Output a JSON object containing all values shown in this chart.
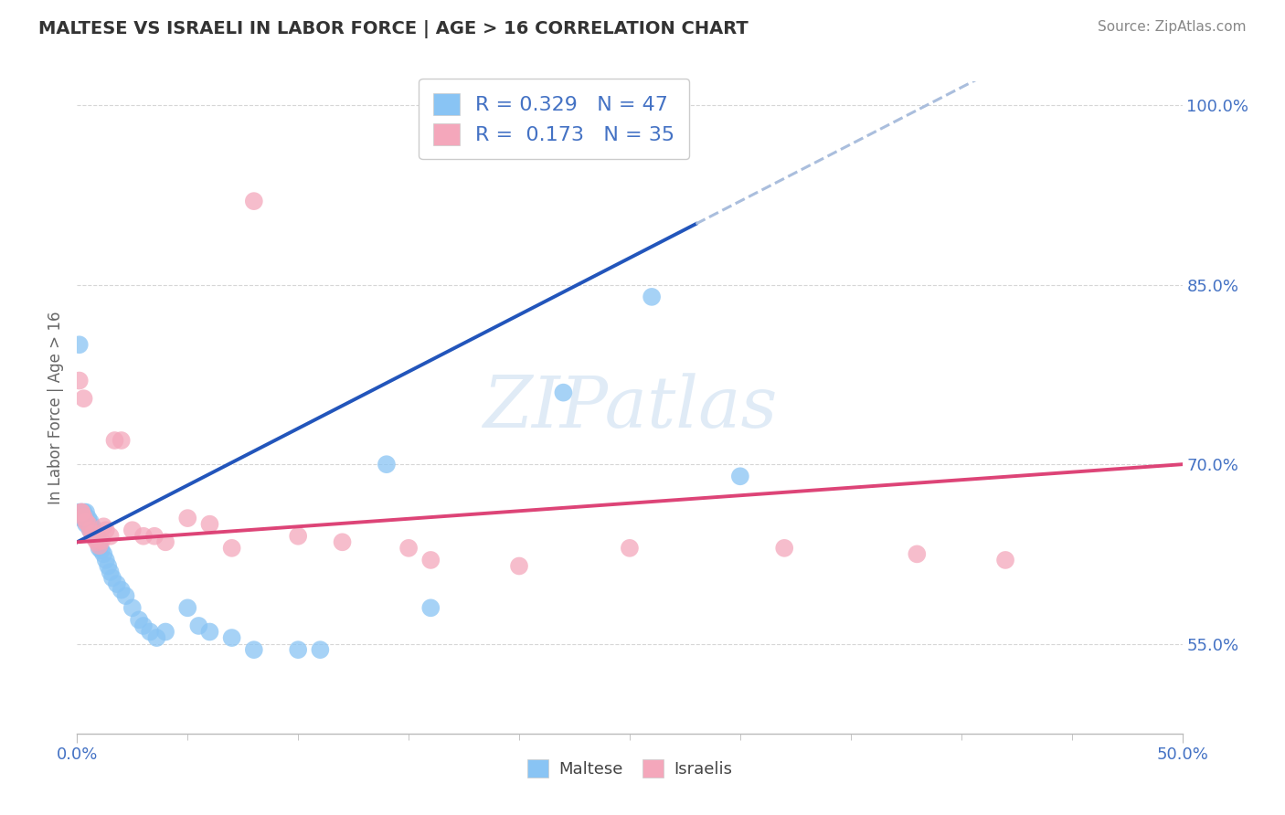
{
  "title": "MALTESE VS ISRAELI IN LABOR FORCE | AGE > 16 CORRELATION CHART",
  "source": "Source: ZipAtlas.com",
  "ylabel": "In Labor Force | Age > 16",
  "xlim": [
    0.0,
    0.5
  ],
  "ylim": [
    0.475,
    1.02
  ],
  "ytick_positions": [
    0.55,
    0.7,
    0.85,
    1.0
  ],
  "yticklabels": [
    "55.0%",
    "70.0%",
    "85.0%",
    "100.0%"
  ],
  "maltese_color": "#89C4F4",
  "israeli_color": "#F4A7BB",
  "trend_maltese_color": "#2255BB",
  "trend_israeli_color": "#DD4477",
  "trend_ext_color": "#AABEDD",
  "R_maltese": 0.329,
  "N_maltese": 47,
  "R_israeli": 0.173,
  "N_israeli": 35,
  "legend_color": "#4472C4",
  "background_color": "#FFFFFF",
  "grid_color": "#CCCCCC",
  "watermark": "ZIPatlas",
  "maltese_x": [
    0.001,
    0.001,
    0.002,
    0.002,
    0.003,
    0.003,
    0.004,
    0.004,
    0.005,
    0.005,
    0.006,
    0.006,
    0.006,
    0.007,
    0.007,
    0.008,
    0.009,
    0.009,
    0.01,
    0.01,
    0.011,
    0.012,
    0.013,
    0.014,
    0.015,
    0.016,
    0.018,
    0.02,
    0.022,
    0.025,
    0.028,
    0.03,
    0.033,
    0.036,
    0.04,
    0.05,
    0.055,
    0.06,
    0.07,
    0.08,
    0.1,
    0.11,
    0.14,
    0.16,
    0.22,
    0.26,
    0.3
  ],
  "maltese_y": [
    0.8,
    0.66,
    0.66,
    0.655,
    0.66,
    0.655,
    0.66,
    0.65,
    0.655,
    0.65,
    0.652,
    0.648,
    0.645,
    0.648,
    0.645,
    0.642,
    0.64,
    0.638,
    0.635,
    0.63,
    0.628,
    0.625,
    0.62,
    0.615,
    0.61,
    0.605,
    0.6,
    0.595,
    0.59,
    0.58,
    0.57,
    0.565,
    0.56,
    0.555,
    0.56,
    0.58,
    0.565,
    0.56,
    0.555,
    0.545,
    0.545,
    0.545,
    0.7,
    0.58,
    0.76,
    0.84,
    0.69
  ],
  "israeli_x": [
    0.001,
    0.002,
    0.002,
    0.003,
    0.003,
    0.004,
    0.005,
    0.006,
    0.007,
    0.008,
    0.009,
    0.01,
    0.011,
    0.012,
    0.013,
    0.015,
    0.017,
    0.02,
    0.025,
    0.03,
    0.035,
    0.04,
    0.05,
    0.06,
    0.07,
    0.08,
    0.1,
    0.12,
    0.15,
    0.16,
    0.2,
    0.25,
    0.32,
    0.38,
    0.42
  ],
  "israeli_y": [
    0.77,
    0.66,
    0.66,
    0.656,
    0.755,
    0.652,
    0.65,
    0.645,
    0.642,
    0.638,
    0.635,
    0.632,
    0.636,
    0.648,
    0.645,
    0.64,
    0.72,
    0.72,
    0.645,
    0.64,
    0.64,
    0.635,
    0.655,
    0.65,
    0.63,
    0.92,
    0.64,
    0.635,
    0.63,
    0.62,
    0.615,
    0.63,
    0.63,
    0.625,
    0.62
  ],
  "trend_maltese_start_x": 0.0,
  "trend_maltese_end_solid": 0.28,
  "trend_maltese_end_dashed": 0.5,
  "trend_israeli_start_x": 0.0,
  "trend_israeli_end_x": 0.5
}
